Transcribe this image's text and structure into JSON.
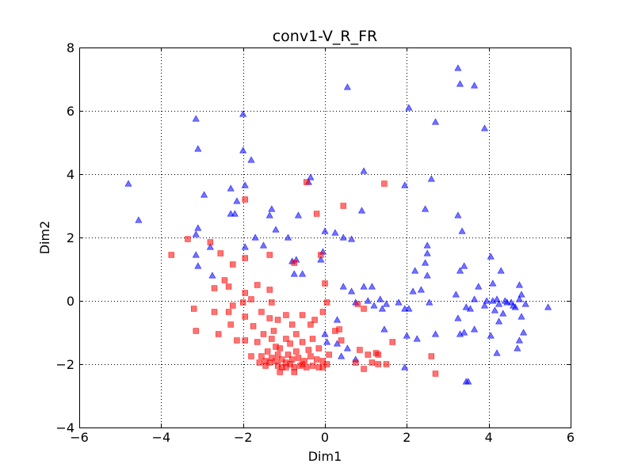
{
  "chart_data": {
    "type": "scatter",
    "title": "conv1-V_R_FR",
    "xlabel": "Dim1",
    "ylabel": "Dim2",
    "xlim": [
      -6,
      6
    ],
    "ylim": [
      -4,
      8
    ],
    "xticks": [
      -6,
      -4,
      -2,
      0,
      2,
      4,
      6
    ],
    "yticks": [
      -4,
      -2,
      0,
      2,
      4,
      6,
      8
    ],
    "grid": true,
    "series": [
      {
        "marker": "triangle",
        "color": "#0000ff",
        "points": [
          [
            -4.8,
            3.7
          ],
          [
            -4.55,
            2.55
          ],
          [
            -3.15,
            5.75
          ],
          [
            -3.1,
            4.8
          ],
          [
            -2.95,
            3.35
          ],
          [
            -3.1,
            2.3
          ],
          [
            -3.15,
            2.1
          ],
          [
            -2.8,
            1.7
          ],
          [
            -3.15,
            1.45
          ],
          [
            -3.1,
            1.1
          ],
          [
            -2.75,
            0.8
          ],
          [
            -2.3,
            3.55
          ],
          [
            -2.3,
            2.75
          ],
          [
            -2.2,
            2.75
          ],
          [
            -2.15,
            3.15
          ],
          [
            -2.0,
            5.9
          ],
          [
            -2.0,
            4.75
          ],
          [
            -1.8,
            4.45
          ],
          [
            -1.95,
            3.65
          ],
          [
            -1.7,
            2.0
          ],
          [
            -1.95,
            1.7
          ],
          [
            -1.5,
            1.75
          ],
          [
            -1.3,
            2.9
          ],
          [
            -1.35,
            2.7
          ],
          [
            -1.2,
            2.25
          ],
          [
            -0.9,
            2.0
          ],
          [
            -0.65,
            2.7
          ],
          [
            -0.8,
            1.25
          ],
          [
            -0.7,
            1.3
          ],
          [
            -0.35,
            3.9
          ],
          [
            -0.4,
            3.75
          ],
          [
            -0.75,
            0.85
          ],
          [
            -0.55,
            0.85
          ],
          [
            0.0,
            2.2
          ],
          [
            0.25,
            2.15
          ],
          [
            -0.05,
            1.55
          ],
          [
            -0.1,
            1.3
          ],
          [
            0.55,
            6.75
          ],
          [
            0.95,
            4.1
          ],
          [
            0.9,
            2.85
          ],
          [
            0.45,
            2.0
          ],
          [
            0.65,
            1.95
          ],
          [
            0.45,
            0.45
          ],
          [
            0.65,
            0.3
          ],
          [
            0.95,
            0.45
          ],
          [
            1.15,
            0.45
          ],
          [
            0.75,
            -0.05
          ],
          [
            1.05,
            0.0
          ],
          [
            1.2,
            -0.15
          ],
          [
            1.35,
            0.05
          ],
          [
            1.5,
            -0.1
          ],
          [
            1.4,
            -0.25
          ],
          [
            1.8,
            -0.05
          ],
          [
            1.95,
            -0.25
          ],
          [
            1.45,
            -0.9
          ],
          [
            1.95,
            3.65
          ],
          [
            2.05,
            6.1
          ],
          [
            2.6,
            3.85
          ],
          [
            2.7,
            5.65
          ],
          [
            2.45,
            2.9
          ],
          [
            2.5,
            1.75
          ],
          [
            2.5,
            1.5
          ],
          [
            2.45,
            1.2
          ],
          [
            2.2,
            0.95
          ],
          [
            2.15,
            0.3
          ],
          [
            2.35,
            0.35
          ],
          [
            2.05,
            -0.25
          ],
          [
            2.5,
            0.8
          ],
          [
            2.55,
            -0.05
          ],
          [
            2.0,
            -1.1
          ],
          [
            2.25,
            -1.2
          ],
          [
            2.7,
            -1.05
          ],
          [
            1.95,
            -2.1
          ],
          [
            3.25,
            7.35
          ],
          [
            3.3,
            6.85
          ],
          [
            3.65,
            6.8
          ],
          [
            3.9,
            5.45
          ],
          [
            3.25,
            2.7
          ],
          [
            3.35,
            2.2
          ],
          [
            3.4,
            1.1
          ],
          [
            3.3,
            0.95
          ],
          [
            3.75,
            0.45
          ],
          [
            3.2,
            0.2
          ],
          [
            3.45,
            -0.2
          ],
          [
            3.55,
            -0.25
          ],
          [
            3.65,
            0.05
          ],
          [
            3.9,
            -0.15
          ],
          [
            3.25,
            -0.55
          ],
          [
            3.65,
            -0.9
          ],
          [
            3.4,
            -1.0
          ],
          [
            3.3,
            -1.05
          ],
          [
            3.5,
            -2.55
          ],
          [
            3.45,
            -2.55
          ],
          [
            4.05,
            1.4
          ],
          [
            4.3,
            0.95
          ],
          [
            4.1,
            0.55
          ],
          [
            3.95,
            0.0
          ],
          [
            4.1,
            0.0
          ],
          [
            4.2,
            0.05
          ],
          [
            4.25,
            -0.1
          ],
          [
            4.4,
            0.0
          ],
          [
            4.15,
            -0.3
          ],
          [
            4.35,
            -0.4
          ],
          [
            4.25,
            -0.65
          ],
          [
            4.45,
            -0.05
          ],
          [
            4.55,
            -0.05
          ],
          [
            4.6,
            -0.15
          ],
          [
            4.65,
            -0.2
          ],
          [
            4.75,
            0.5
          ],
          [
            4.8,
            0.2
          ],
          [
            4.75,
            0.05
          ],
          [
            4.9,
            -0.1
          ],
          [
            4.8,
            -0.5
          ],
          [
            4.85,
            -1.0
          ],
          [
            4.75,
            -1.25
          ],
          [
            4.7,
            -1.5
          ],
          [
            4.05,
            -1.1
          ],
          [
            4.2,
            -1.65
          ],
          [
            5.45,
            -0.2
          ],
          [
            0.3,
            -0.6
          ],
          [
            0.0,
            -1.05
          ],
          [
            0.05,
            -1.3
          ],
          [
            0.3,
            -1.35
          ],
          [
            0.55,
            -1.5
          ],
          [
            0.4,
            -1.75
          ],
          [
            0.75,
            -1.85
          ]
        ]
      },
      {
        "marker": "square",
        "color": "#ff0000",
        "points": [
          [
            -3.75,
            1.45
          ],
          [
            -3.35,
            1.95
          ],
          [
            -2.8,
            1.85
          ],
          [
            -2.55,
            1.5
          ],
          [
            -2.25,
            1.15
          ],
          [
            -1.95,
            1.35
          ],
          [
            -2.45,
            0.65
          ],
          [
            -2.7,
            0.4
          ],
          [
            -2.35,
            0.45
          ],
          [
            -1.95,
            0.25
          ],
          [
            -1.65,
            0.5
          ],
          [
            -1.8,
            0.05
          ],
          [
            -1.35,
            0.35
          ],
          [
            -1.3,
            -0.05
          ],
          [
            -2.25,
            -0.15
          ],
          [
            -2.0,
            -0.05
          ],
          [
            -1.95,
            3.2
          ],
          [
            -1.35,
            1.45
          ],
          [
            -0.75,
            1.2
          ],
          [
            -0.45,
            3.75
          ],
          [
            -0.2,
            2.75
          ],
          [
            0.45,
            3.0
          ],
          [
            1.45,
            3.7
          ],
          [
            -0.1,
            1.45
          ],
          [
            0.0,
            0.55
          ],
          [
            0.05,
            -0.05
          ],
          [
            -3.2,
            -0.25
          ],
          [
            -2.7,
            -0.35
          ],
          [
            -2.35,
            -0.35
          ],
          [
            -3.15,
            -0.95
          ],
          [
            -2.3,
            -0.75
          ],
          [
            -1.95,
            -0.5
          ],
          [
            -1.75,
            -0.8
          ],
          [
            -1.55,
            -0.35
          ],
          [
            -1.35,
            -0.55
          ],
          [
            -1.25,
            -0.95
          ],
          [
            -0.95,
            -0.45
          ],
          [
            -0.8,
            -0.75
          ],
          [
            -0.55,
            -0.45
          ],
          [
            -0.35,
            -0.75
          ],
          [
            -0.25,
            -0.6
          ],
          [
            -0.05,
            -0.35
          ],
          [
            0.25,
            -0.95
          ],
          [
            0.8,
            -0.1
          ],
          [
            0.95,
            -0.25
          ],
          [
            -2.6,
            -1.05
          ],
          [
            -2.15,
            -1.25
          ],
          [
            -1.95,
            -1.25
          ],
          [
            -1.65,
            -1.3
          ],
          [
            -1.5,
            -1.05
          ],
          [
            -1.3,
            -1.2
          ],
          [
            -1.2,
            -1.45
          ],
          [
            -1.1,
            -1.5
          ],
          [
            -0.95,
            -1.2
          ],
          [
            -0.85,
            -1.35
          ],
          [
            -0.7,
            -1.05
          ],
          [
            -0.55,
            -1.3
          ],
          [
            -0.4,
            -1.55
          ],
          [
            -0.3,
            -1.2
          ],
          [
            -0.15,
            -1.5
          ],
          [
            0.4,
            -1.25
          ],
          [
            0.1,
            -1.7
          ],
          [
            -1.8,
            -1.75
          ],
          [
            -1.55,
            -1.75
          ],
          [
            -1.45,
            -1.9
          ],
          [
            -1.35,
            -1.95
          ],
          [
            -1.3,
            -1.8
          ],
          [
            -1.2,
            -1.9
          ],
          [
            -1.15,
            -2.05
          ],
          [
            -1.05,
            -2.1
          ],
          [
            -1.05,
            -1.85
          ],
          [
            -0.95,
            -1.95
          ],
          [
            -0.85,
            -2.0
          ],
          [
            -0.8,
            -1.85
          ],
          [
            -0.75,
            -2.1
          ],
          [
            -0.65,
            -1.8
          ],
          [
            -0.55,
            -2.0
          ],
          [
            -0.5,
            -1.9
          ],
          [
            -0.45,
            -2.1
          ],
          [
            -0.35,
            -1.75
          ],
          [
            -0.3,
            -2.05
          ],
          [
            -0.2,
            -1.85
          ],
          [
            -0.15,
            -2.1
          ],
          [
            -0.05,
            -1.9
          ],
          [
            0.05,
            -2.0
          ],
          [
            0.85,
            -1.55
          ],
          [
            1.05,
            -1.7
          ],
          [
            1.15,
            -1.95
          ],
          [
            1.25,
            -1.65
          ],
          [
            1.3,
            -1.7
          ],
          [
            1.3,
            -2.0
          ],
          [
            0.95,
            -2.15
          ],
          [
            1.65,
            -1.3
          ],
          [
            1.5,
            -2.0
          ],
          [
            2.6,
            -1.75
          ],
          [
            2.7,
            -2.3
          ],
          [
            -1.1,
            -2.25
          ],
          [
            -0.75,
            -2.25
          ],
          [
            -1.6,
            -1.95
          ],
          [
            -1.45,
            -2.05
          ],
          [
            -0.95,
            -2.1
          ],
          [
            -0.6,
            -2.05
          ],
          [
            -1.4,
            -1.6
          ],
          [
            -1.15,
            -1.7
          ],
          [
            -0.9,
            -1.7
          ],
          [
            -0.05,
            -2.1
          ],
          [
            0.75,
            -1.95
          ],
          [
            0.35,
            -0.9
          ],
          [
            -1.15,
            -0.6
          ],
          [
            -0.7,
            -1.6
          ]
        ]
      }
    ]
  }
}
